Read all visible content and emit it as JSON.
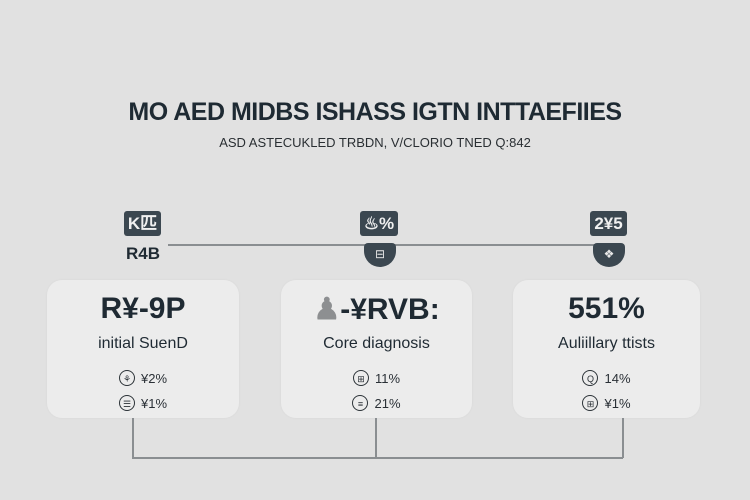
{
  "header": {
    "title": "MO AED MIDBS ISHASS IGTN INTTAEFIIES",
    "subtitle": "ASD ASTECUKLED TRBDN, V/CLORIO TNED Q:842"
  },
  "timeline": {
    "markers": [
      {
        "box_text": "K匹",
        "label": "R4B",
        "icon": "lungs-icon"
      },
      {
        "box_text": "♨%",
        "badge_text": "⊟",
        "icon": "hospital-icon"
      },
      {
        "box_text": "2¥5",
        "badge_text": "❖",
        "icon": "certificate-icon"
      }
    ]
  },
  "cards": [
    {
      "value": "R¥-9P",
      "label": "initial SuenD",
      "rows": [
        {
          "icon": "lungs-icon",
          "glyph": "⚘",
          "text": "¥2%"
        },
        {
          "icon": "hand-icon",
          "glyph": "☰",
          "text": "¥1%"
        }
      ]
    },
    {
      "value": "-¥RVB:",
      "value_icon": "person-icon",
      "label": "Core diagnosis",
      "rows": [
        {
          "icon": "clipboard-icon",
          "glyph": "⊞",
          "text": "11%"
        },
        {
          "icon": "list-icon",
          "glyph": "≡",
          "text": "21%"
        }
      ]
    },
    {
      "value": "551%",
      "label": "Auliillary ttists",
      "rows": [
        {
          "icon": "search-icon",
          "glyph": "Q",
          "text": "14%"
        },
        {
          "icon": "grid-icon",
          "glyph": "⊞",
          "text": "¥1%"
        }
      ]
    }
  ],
  "colors": {
    "background": "#e1e1e1",
    "card": "#ececec",
    "dark": "#3b4750",
    "text": "#1f2a33"
  }
}
